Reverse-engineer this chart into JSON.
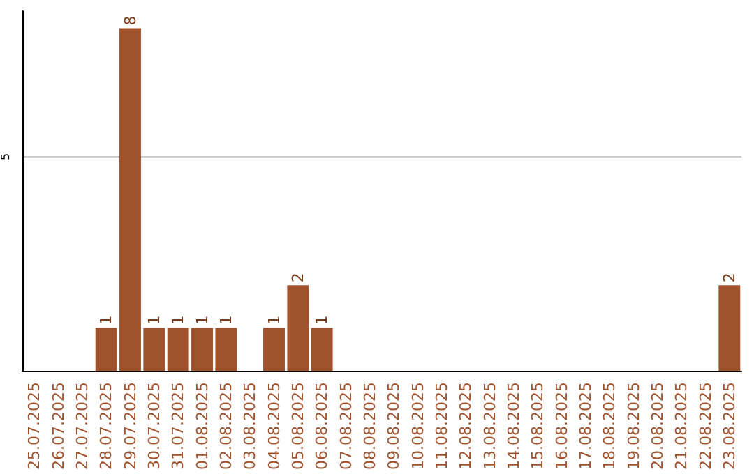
{
  "chart_data": {
    "type": "bar",
    "categories": [
      "25.07.2025",
      "26.07.2025",
      "27.07.2025",
      "28.07.2025",
      "29.07.2025",
      "30.07.2025",
      "31.07.2025",
      "01.08.2025",
      "02.08.2025",
      "03.08.2025",
      "04.08.2025",
      "05.08.2025",
      "06.08.2025",
      "07.08.2025",
      "08.08.2025",
      "09.08.2025",
      "10.08.2025",
      "11.08.2025",
      "12.08.2025",
      "13.08.2025",
      "14.08.2025",
      "15.08.2025",
      "16.08.2025",
      "17.08.2025",
      "18.08.2025",
      "19.08.2025",
      "20.08.2025",
      "21.08.2025",
      "22.08.2025",
      "23.08.2025"
    ],
    "values": [
      0,
      0,
      0,
      1,
      8,
      1,
      1,
      1,
      1,
      0,
      1,
      2,
      1,
      0,
      0,
      0,
      0,
      0,
      0,
      0,
      0,
      0,
      0,
      0,
      0,
      0,
      0,
      0,
      0,
      2
    ],
    "value_labels": [
      null,
      null,
      null,
      "1",
      "8",
      "1",
      "1",
      "1",
      "1",
      null,
      "1",
      "2",
      "1",
      null,
      null,
      null,
      null,
      null,
      null,
      null,
      null,
      null,
      null,
      null,
      null,
      null,
      null,
      null,
      null,
      "2"
    ],
    "color": "#a0522d",
    "ylim": [
      0,
      8.4
    ],
    "yticks": [
      5
    ],
    "grid": "y"
  }
}
